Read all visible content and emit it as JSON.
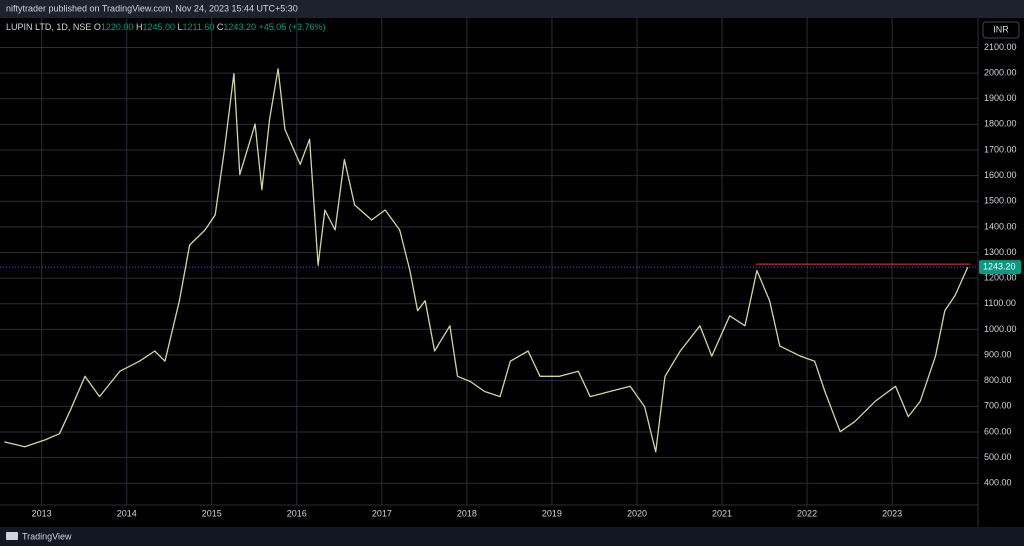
{
  "header": {
    "published": "niftytrader published on TradingView.com, Nov 24, 2023 15:44 UTC+5:30"
  },
  "chart_data": {
    "type": "line",
    "symbol": "LUPIN LTD, 1D, NSE",
    "legend": [
      {
        "key": "O",
        "value": "1220.00"
      },
      {
        "key": "H",
        "value": "1245.00"
      },
      {
        "key": "L",
        "value": "1211.60"
      },
      {
        "key": "C",
        "value": "1243.20"
      }
    ],
    "change": "+45.05 (+3.76%)",
    "currency": "INR",
    "color": "#cfd89a",
    "x": [
      2012.56,
      2012.8,
      2013.04,
      2013.21,
      2013.33,
      2013.51,
      2013.68,
      2013.92,
      2014.15,
      2014.33,
      2014.45,
      2014.62,
      2014.74,
      2014.92,
      2015.04,
      2015.15,
      2015.26,
      2015.33,
      2015.51,
      2015.59,
      2015.68,
      2015.78,
      2015.86,
      2016.04,
      2016.15,
      2016.25,
      2016.33,
      2016.45,
      2016.56,
      2016.68,
      2016.88,
      2017.04,
      2017.21,
      2017.33,
      2017.42,
      2017.51,
      2017.62,
      2017.8,
      2017.89,
      2018.04,
      2018.21,
      2018.39,
      2018.51,
      2018.72,
      2018.86,
      2019.09,
      2019.31,
      2019.45,
      2019.68,
      2019.92,
      2020.09,
      2020.22,
      2020.33,
      2020.51,
      2020.74,
      2020.88,
      2021.09,
      2021.27,
      2021.41,
      2021.56,
      2021.68,
      2021.92,
      2022.09,
      2022.21,
      2022.39,
      2022.56,
      2022.8,
      2023.04,
      2023.19,
      2023.33,
      2023.51,
      2023.62,
      2023.74,
      2023.89
    ],
    "values": [
      561,
      542,
      569,
      593,
      679,
      817,
      738,
      837,
      876,
      916,
      876,
      1112,
      1329,
      1388,
      1447,
      1703,
      1998,
      1604,
      1801,
      1545,
      1821,
      2017,
      1781,
      1644,
      1742,
      1250,
      1466,
      1388,
      1663,
      1486,
      1427,
      1466,
      1388,
      1230,
      1073,
      1112,
      916,
      1014,
      817,
      797,
      758,
      738,
      876,
      916,
      817,
      817,
      837,
      738,
      758,
      778,
      699,
      522,
      817,
      916,
      1014,
      896,
      1053,
      1014,
      1230,
      1112,
      935,
      896,
      876,
      758,
      601,
      640,
      719,
      778,
      660,
      719,
      896,
      1073,
      1132,
      1243.2
    ],
    "xlim": [
      2012.51,
      2024.01
    ],
    "xticks": [
      2013,
      2014,
      2015,
      2016,
      2017,
      2018,
      2019,
      2020,
      2021,
      2022,
      2023
    ],
    "ylim": [
      315,
      2215
    ],
    "yticks": [
      {
        "value": 400,
        "label": "400.00"
      },
      {
        "value": 500,
        "label": "500.00"
      },
      {
        "value": 600,
        "label": "600.00"
      },
      {
        "value": 700,
        "label": "700.00"
      },
      {
        "value": 800,
        "label": "800.00"
      },
      {
        "value": 900,
        "label": "900.00"
      },
      {
        "value": 1000,
        "label": "1000.00"
      },
      {
        "value": 1100,
        "label": "1100.00"
      },
      {
        "value": 1200,
        "label": "1200.00"
      },
      {
        "value": 1300,
        "label": "1300.00"
      },
      {
        "value": 1400,
        "label": "1400.00"
      },
      {
        "value": 1500,
        "label": "1500.00"
      },
      {
        "value": 1600,
        "label": "1600.00"
      },
      {
        "value": 1700,
        "label": "1700.00"
      },
      {
        "value": 1800,
        "label": "1800.00"
      },
      {
        "value": 1900,
        "label": "1900.00"
      },
      {
        "value": 2000,
        "label": "2000.00"
      },
      {
        "value": 2100,
        "label": "2100.00"
      }
    ],
    "grid": true,
    "last_price": {
      "value": 1243.2,
      "label": "1243.20",
      "color": "#089981"
    },
    "lines": [
      {
        "value": 1255,
        "x": [
          2021.4,
          2023.92
        ],
        "color": "#f23645"
      }
    ]
  },
  "footer": {
    "brand": "TradingView"
  }
}
